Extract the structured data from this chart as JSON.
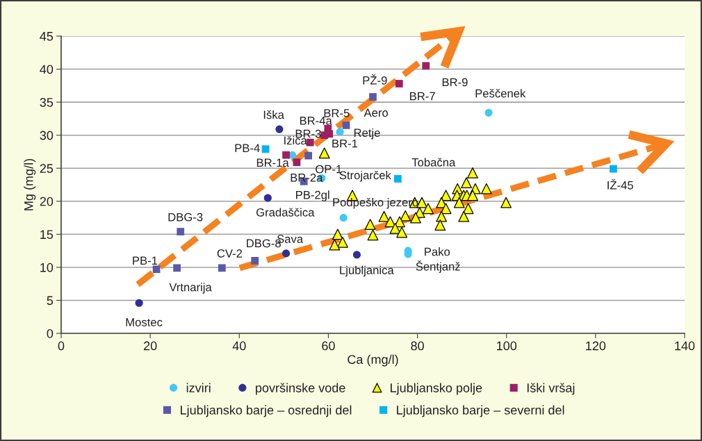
{
  "chart_data": {
    "type": "scatter",
    "xlabel": "Ca (mg/l)",
    "ylabel": "Mg (mg/l)",
    "xlim": [
      0,
      140
    ],
    "xticks": [
      0,
      20,
      40,
      60,
      80,
      100,
      120,
      140
    ],
    "ylim": [
      0,
      45
    ],
    "yticks": [
      0,
      5,
      10,
      15,
      20,
      25,
      30,
      35,
      40,
      45
    ],
    "grid": "y",
    "legend": "bottom",
    "series": [
      {
        "name": "izviri",
        "color": "#42c8f4",
        "marker": "circle",
        "x": [
          96.0,
          62.6,
          51.9,
          58.5,
          63.4,
          77.9,
          77.9
        ],
        "values": [
          33.4,
          30.5,
          27.0,
          23.5,
          17.5,
          12.5,
          12.0
        ]
      },
      {
        "name": "površinske vode",
        "color": "#2e3192",
        "marker": "circle",
        "x": [
          49.0,
          46.4,
          17.5,
          50.5,
          66.4
        ],
        "values": [
          30.9,
          20.5,
          4.6,
          12.1,
          11.9
        ]
      },
      {
        "name": "Ljubljansko polje",
        "color": "#ffff00",
        "marker": "triangle",
        "x": [
          92.4,
          91.0,
          89.0,
          93.0,
          95.5,
          86.4,
          88.9,
          90.4,
          91.1,
          92.4,
          79.4,
          81.0,
          85.4,
          89.4,
          99.9,
          65.4,
          82.4,
          86.4,
          91.4,
          80.5,
          85.4,
          90.4,
          77.3,
          79.6,
          72.5,
          73.9,
          76.0,
          69.4,
          75.0,
          76.5,
          85.1,
          70.0,
          62.1,
          63.2,
          61.4,
          59.1
        ],
        "values": [
          24.3,
          22.8,
          21.9,
          21.9,
          21.9,
          20.9,
          20.9,
          20.9,
          20.9,
          20.9,
          19.8,
          19.8,
          19.8,
          19.8,
          19.8,
          20.9,
          18.9,
          18.9,
          18.9,
          18.3,
          17.7,
          17.7,
          17.8,
          17.5,
          17.7,
          16.9,
          16.9,
          16.5,
          15.9,
          15.3,
          16.4,
          14.9,
          15.0,
          13.8,
          13.4,
          27.3
        ]
      },
      {
        "name": "Iški vršaj",
        "color": "#9e1f63",
        "marker": "square",
        "x": [
          81.9,
          75.9,
          59.9,
          59.1,
          55.9,
          60.2,
          50.5,
          52.9
        ],
        "values": [
          40.5,
          37.8,
          31.0,
          30.0,
          28.9,
          30.2,
          27.0,
          25.9
        ]
      },
      {
        "name": "Ljubljansko barje – osrednji del",
        "color": "#5b59a8",
        "marker": "square",
        "x": [
          70.0,
          64.0,
          55.5,
          54.5,
          26.8,
          21.4,
          26.0,
          36.1,
          43.5
        ],
        "values": [
          35.8,
          31.5,
          26.9,
          23.0,
          15.4,
          9.7,
          9.9,
          9.9,
          11.0
        ]
      },
      {
        "name": "Ljubljansko barje – severni del",
        "color": "#00b4ef",
        "marker": "square",
        "x": [
          45.9,
          75.6,
          124.0
        ],
        "values": [
          27.9,
          23.4,
          24.9
        ]
      },
      {
        "type": "line",
        "color": "#f58220",
        "line_style": "dashed",
        "marker": "none",
        "x": [
          17.2,
          87.9
        ],
        "values": [
          7.4,
          45.0
        ]
      },
      {
        "type": "line",
        "color": "#f58220",
        "line_style": "dashed",
        "marker": "none",
        "x": [
          40.1,
          134.2
        ],
        "values": [
          9.9,
          28.4
        ]
      }
    ],
    "annotations": [
      {
        "text": "Peščenek",
        "x": 96.0,
        "y": 33.4
      },
      {
        "text": "Retje",
        "x": 62.6,
        "y": 30.5
      },
      {
        "text": "Ižica",
        "x": 51.9,
        "y": 27.0
      },
      {
        "text": "Strojarček",
        "x": 58.5,
        "y": 23.5
      },
      {
        "text": "Podpeško jezero",
        "x": 63.4,
        "y": 17.5
      },
      {
        "text": "Pako",
        "x": 77.9,
        "y": 12.5
      },
      {
        "text": "Šentjanž",
        "x": 77.9,
        "y": 12.0
      },
      {
        "text": "Iška",
        "x": 49.0,
        "y": 30.9
      },
      {
        "text": "Gradaščica",
        "x": 46.4,
        "y": 20.5
      },
      {
        "text": "Mostec",
        "x": 17.5,
        "y": 4.6
      },
      {
        "text": "Sava",
        "x": 50.5,
        "y": 12.1
      },
      {
        "text": "Ljubljanica",
        "x": 66.4,
        "y": 11.9
      },
      {
        "text": "BR-9",
        "x": 81.9,
        "y": 40.5
      },
      {
        "text": "BR-7",
        "x": 75.9,
        "y": 37.8
      },
      {
        "text": "BR-5",
        "x": 59.9,
        "y": 31.0
      },
      {
        "text": "BR-4a",
        "x": 59.1,
        "y": 30.0
      },
      {
        "text": "BR-3",
        "x": 55.9,
        "y": 28.9
      },
      {
        "text": "BR-1",
        "x": 60.2,
        "y": 30.2
      },
      {
        "text": "BR-1a",
        "x": 50.5,
        "y": 27.0
      },
      {
        "text": "BR-2a",
        "x": 52.9,
        "y": 25.9
      },
      {
        "text": "OP-1",
        "x": 55.5,
        "y": 26.9
      },
      {
        "text": "PB-2gl",
        "x": 54.5,
        "y": 23.0
      },
      {
        "text": "PŽ-9",
        "x": 70.0,
        "y": 35.8
      },
      {
        "text": "Aero",
        "x": 64.0,
        "y": 31.5
      },
      {
        "text": "DBG-3",
        "x": 26.8,
        "y": 15.4
      },
      {
        "text": "PB-1",
        "x": 21.4,
        "y": 9.7
      },
      {
        "text": "Vrtnarija",
        "x": 26.0,
        "y": 9.9
      },
      {
        "text": "CV-2",
        "x": 36.1,
        "y": 9.9
      },
      {
        "text": "DBG-8",
        "x": 43.5,
        "y": 11.0
      },
      {
        "text": "PB-4",
        "x": 45.9,
        "y": 27.9
      },
      {
        "text": "Tobačna",
        "x": 75.6,
        "y": 23.4
      },
      {
        "text": "IŽ-45",
        "x": 124.0,
        "y": 24.9
      }
    ]
  }
}
